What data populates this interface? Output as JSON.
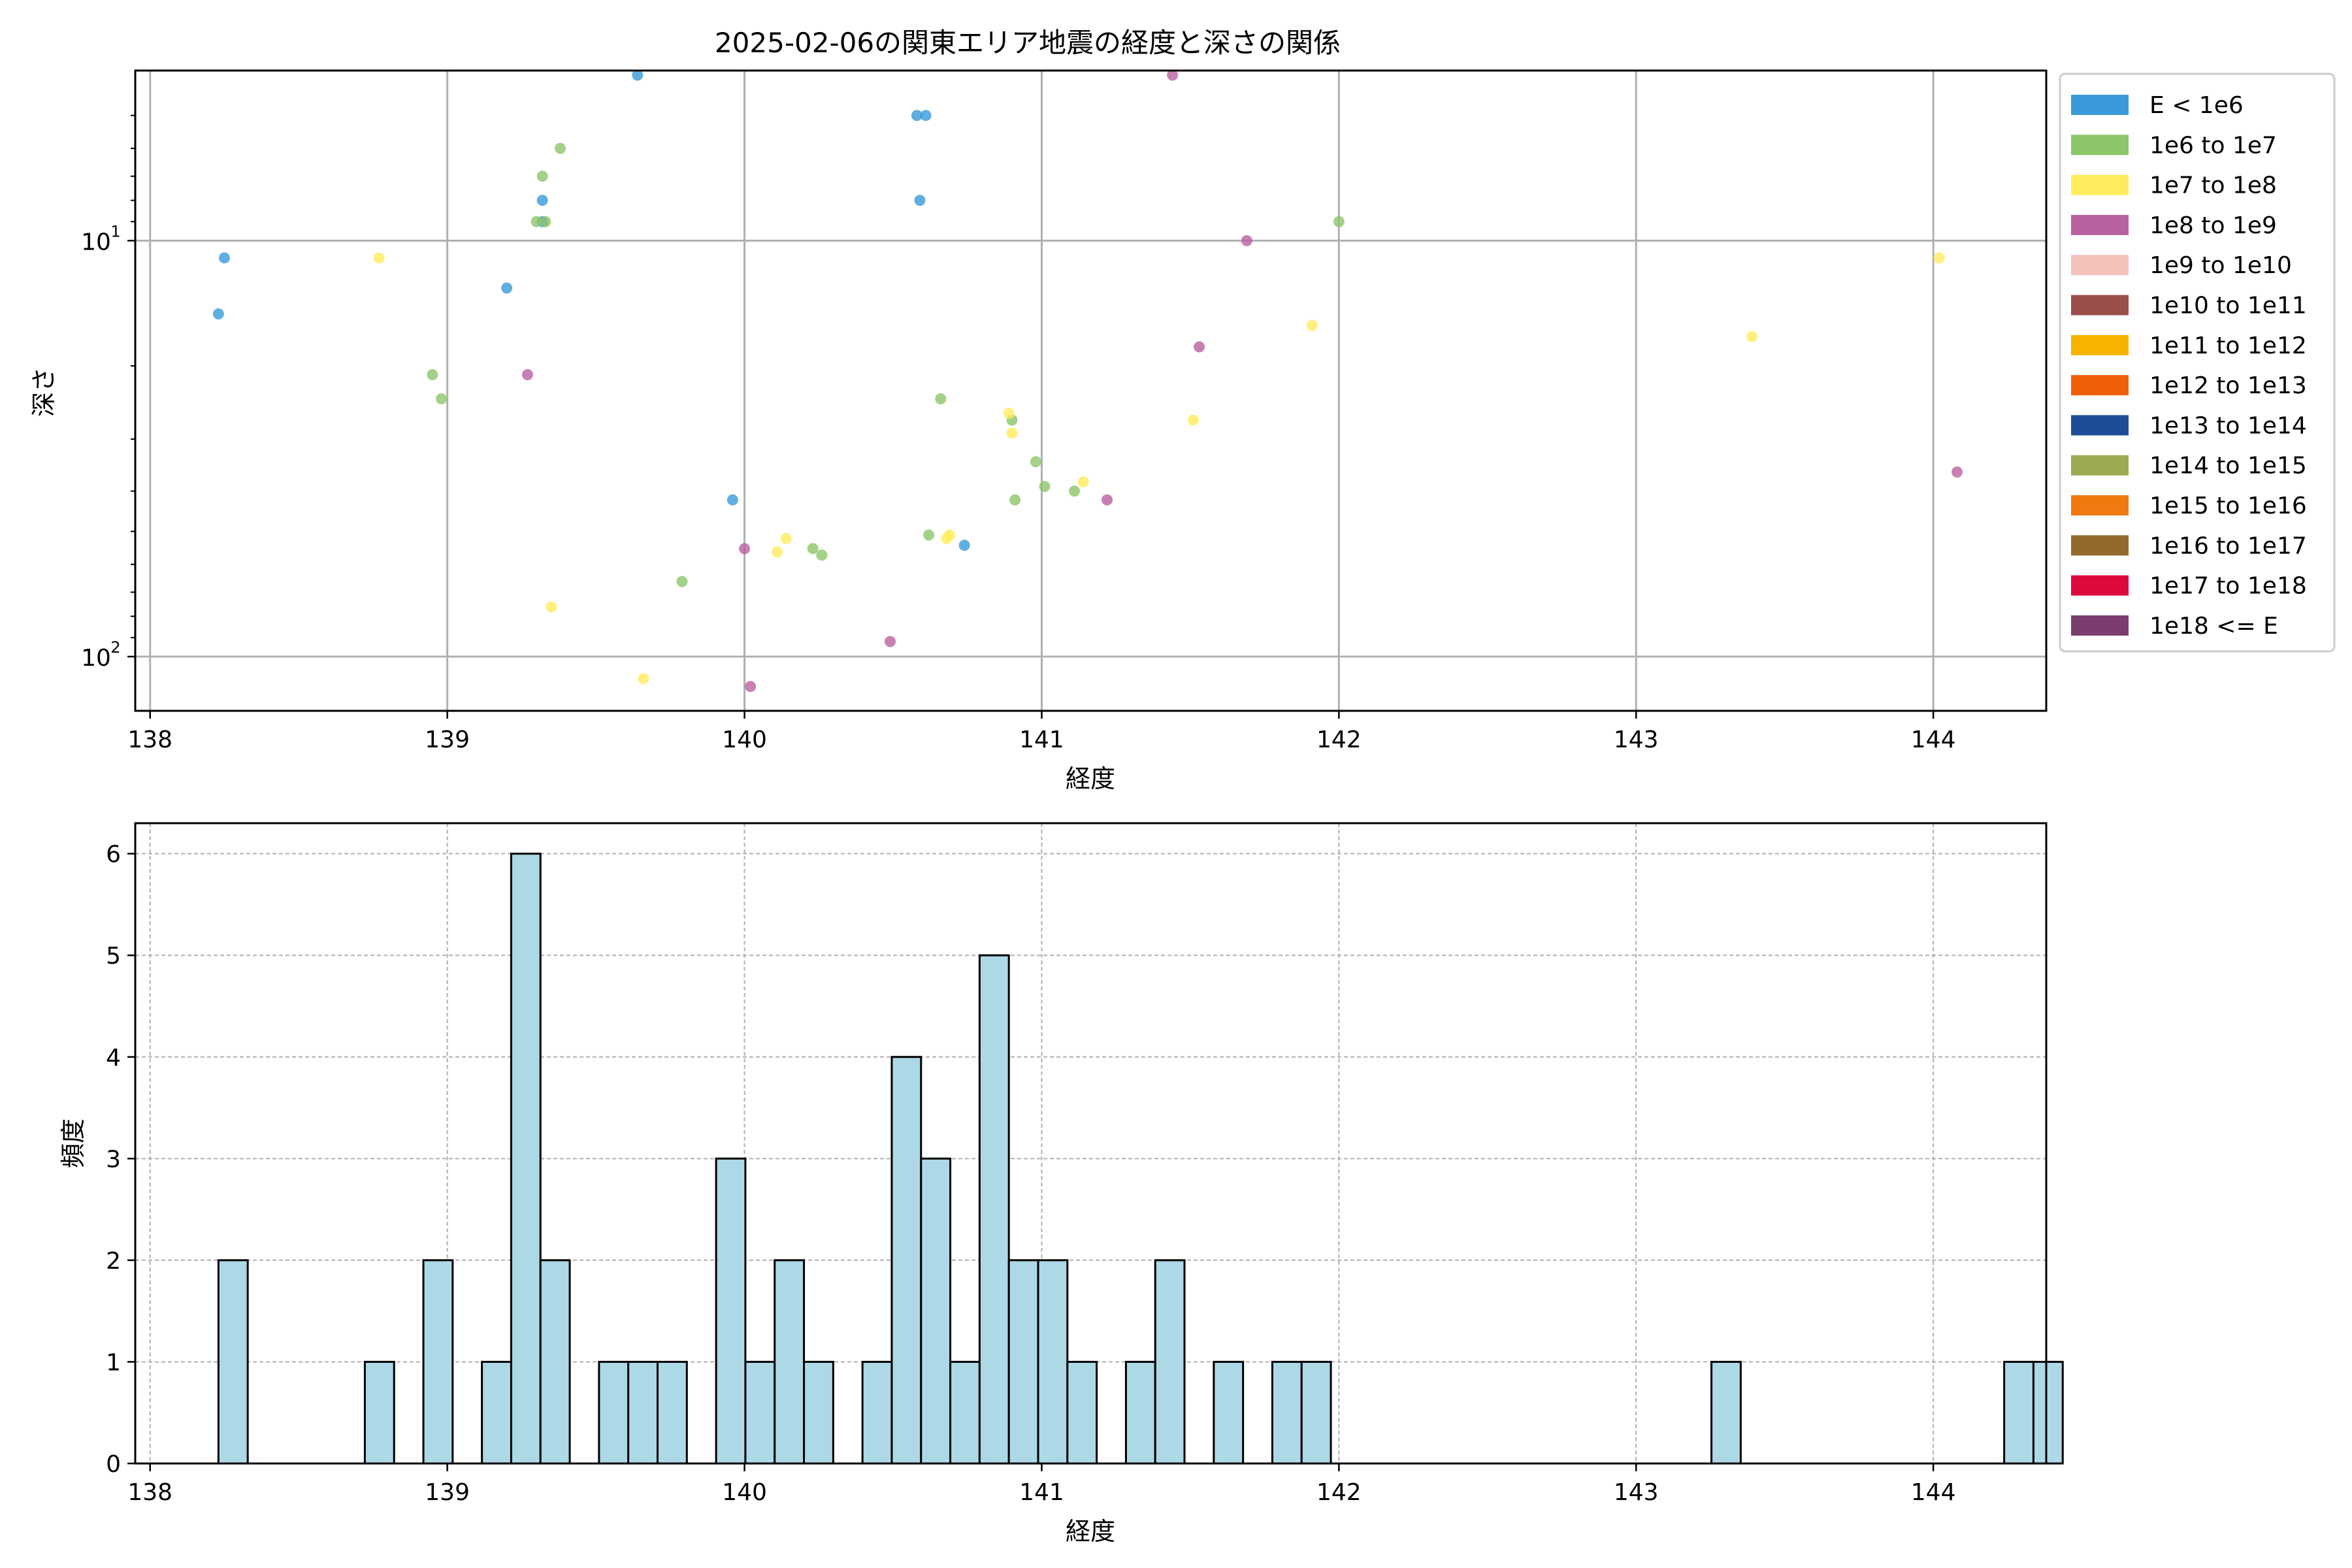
{
  "chart_data": [
    {
      "type": "scatter",
      "title": "2025-02-06の関東エリア地震の経度と深さの関係",
      "xlabel": "経度",
      "ylabel": "深さ",
      "xlim": [
        137.95,
        144.38
      ],
      "ylim_inverted_log": [
        3.9,
        135
      ],
      "yscale": "log",
      "y_inverted": true,
      "grid": true,
      "xticks": [
        138,
        139,
        140,
        141,
        142,
        143,
        144
      ],
      "xtick_labels": [
        "138",
        "139",
        "140",
        "141",
        "142",
        "143",
        "144"
      ],
      "yticks": [
        10,
        100
      ],
      "ytick_base": "10",
      "ytick_exponents": [
        "1",
        "2"
      ],
      "legend_position": "outside-right",
      "legend": [
        {
          "label": "E < 1e6",
          "color": "#3a9ad9"
        },
        {
          "label": "1e6 to 1e7",
          "color": "#8cc66a"
        },
        {
          "label": "1e7 to 1e8",
          "color": "#ffec5c"
        },
        {
          "label": "1e8 to 1e9",
          "color": "#b9609f"
        },
        {
          "label": "1e9 to 1e10",
          "color": "#f5c1bb"
        },
        {
          "label": "1e10 to 1e11",
          "color": "#9b4f4a"
        },
        {
          "label": "1e11 to 1e12",
          "color": "#f6b400"
        },
        {
          "label": "1e12 to 1e13",
          "color": "#ee5f0a"
        },
        {
          "label": "1e13 to 1e14",
          "color": "#1c4d96"
        },
        {
          "label": "1e14 to 1e15",
          "color": "#9aab52"
        },
        {
          "label": "1e15 to 1e16",
          "color": "#ef7b10"
        },
        {
          "label": "1e16 to 1e17",
          "color": "#946a2c"
        },
        {
          "label": "1e17 to 1e18",
          "color": "#dc0a3c"
        },
        {
          "label": "1e18 <= E",
          "color": "#7a3d6e"
        }
      ],
      "series": [
        {
          "name": "E < 1e6",
          "color": "#3a9ad9",
          "points": [
            [
              138.25,
              11
            ],
            [
              138.23,
              15
            ],
            [
              139.64,
              4
            ],
            [
              139.2,
              13
            ],
            [
              139.32,
              8
            ],
            [
              139.32,
              9
            ],
            [
              139.96,
              42
            ],
            [
              140.58,
              5
            ],
            [
              140.61,
              5
            ],
            [
              140.59,
              8
            ],
            [
              140.74,
              54
            ]
          ]
        },
        {
          "name": "1e6 to 1e7",
          "color": "#8cc66a",
          "points": [
            [
              139.38,
              6
            ],
            [
              139.32,
              7
            ],
            [
              139.3,
              9
            ],
            [
              139.33,
              9
            ],
            [
              138.95,
              21
            ],
            [
              138.98,
              24
            ],
            [
              139.79,
              66
            ],
            [
              140.66,
              24
            ],
            [
              140.9,
              27
            ],
            [
              140.98,
              34
            ],
            [
              141.01,
              39
            ],
            [
              141.11,
              40
            ],
            [
              140.91,
              42
            ],
            [
              140.62,
              51
            ],
            [
              140.23,
              55
            ],
            [
              140.26,
              57
            ],
            [
              142.0,
              9
            ]
          ]
        },
        {
          "name": "1e7 to 1e8",
          "color": "#ffec5c",
          "points": [
            [
              138.77,
              11
            ],
            [
              139.35,
              76
            ],
            [
              139.66,
              113
            ],
            [
              140.14,
              52
            ],
            [
              140.11,
              56
            ],
            [
              140.69,
              51
            ],
            [
              140.68,
              52
            ],
            [
              140.89,
              26
            ],
            [
              140.9,
              29
            ],
            [
              141.14,
              38
            ],
            [
              141.51,
              27
            ],
            [
              141.91,
              16
            ],
            [
              143.39,
              17
            ],
            [
              144.02,
              11
            ]
          ]
        },
        {
          "name": "1e8 to 1e9",
          "color": "#b9609f",
          "points": [
            [
              141.44,
              4
            ],
            [
              141.69,
              10
            ],
            [
              141.53,
              18
            ],
            [
              139.27,
              21
            ],
            [
              140.0,
              55
            ],
            [
              141.22,
              42
            ],
            [
              140.49,
              92
            ],
            [
              140.02,
              118
            ],
            [
              144.08,
              36
            ]
          ]
        }
      ]
    },
    {
      "type": "bar",
      "title": "",
      "xlabel": "経度",
      "ylabel": "頻度",
      "xlim": [
        137.95,
        144.38
      ],
      "ylim": [
        0,
        6.3
      ],
      "grid": true,
      "xticks": [
        138,
        139,
        140,
        141,
        142,
        143,
        144
      ],
      "xtick_labels": [
        "138",
        "139",
        "140",
        "141",
        "142",
        "143",
        "144"
      ],
      "yticks": [
        0,
        1,
        2,
        3,
        4,
        5,
        6
      ],
      "ytick_labels": [
        "0",
        "1",
        "2",
        "3",
        "4",
        "5",
        "6"
      ],
      "bar_color": "#add8e6",
      "edge_color": "#000000",
      "bin_start": 138.23,
      "bin_width": 0.0985,
      "counts": [
        2,
        0,
        0,
        0,
        0,
        1,
        0,
        2,
        0,
        1,
        6,
        2,
        0,
        1,
        1,
        1,
        0,
        3,
        1,
        2,
        1,
        0,
        1,
        4,
        3,
        1,
        5,
        2,
        2,
        1,
        0,
        1,
        2,
        0,
        1,
        0,
        1,
        1,
        0,
        0,
        0,
        0,
        0,
        0,
        0,
        0,
        0,
        0,
        0,
        0,
        0,
        1,
        0,
        0,
        0,
        0,
        0,
        0,
        0,
        0,
        0,
        1,
        1
      ]
    }
  ]
}
